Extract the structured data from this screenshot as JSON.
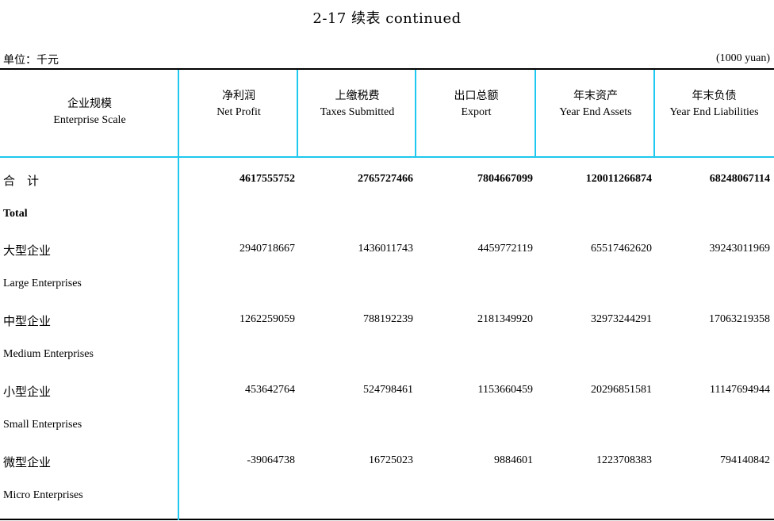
{
  "title": "2-17  续表 continued",
  "unit_cn": "单位：千元",
  "unit_en": "(1000 yuan)",
  "header": {
    "scale_cn": "企业规模",
    "scale_en": "Enterprise Scale",
    "columns": [
      {
        "cn": "净利润",
        "en": "Net Profit"
      },
      {
        "cn": "上缴税费",
        "en": "Taxes Submitted"
      },
      {
        "cn": "出口总额",
        "en": "Export"
      },
      {
        "cn": "年末资产",
        "en": "Year End Assets"
      },
      {
        "cn": "年末负债",
        "en": "Year End Liabilities"
      }
    ]
  },
  "rows": [
    {
      "cn": "合　计",
      "en": "Total",
      "values": [
        "4617555752",
        "2765727466",
        "7804667099",
        "120011266874",
        "68248067114"
      ]
    },
    {
      "cn": "大型企业",
      "en": "Large Enterprises",
      "values": [
        "2940718667",
        "1436011743",
        "4459772119",
        "65517462620",
        "39243011969"
      ]
    },
    {
      "cn": "中型企业",
      "en": "Medium Enterprises",
      "values": [
        "1262259059",
        "788192239",
        "2181349920",
        "32973244291",
        "17063219358"
      ]
    },
    {
      "cn": "小型企业",
      "en": "Small Enterprises",
      "values": [
        "453642764",
        "524798461",
        "1153660459",
        "20296851581",
        "11147694944"
      ]
    },
    {
      "cn": "微型企业",
      "en": "Micro Enterprises",
      "values": [
        "-39064738",
        "16725023",
        "9884601",
        "1223708383",
        "794140842"
      ]
    }
  ],
  "colors": {
    "rule": "#1ec8ee",
    "text": "#000000"
  }
}
